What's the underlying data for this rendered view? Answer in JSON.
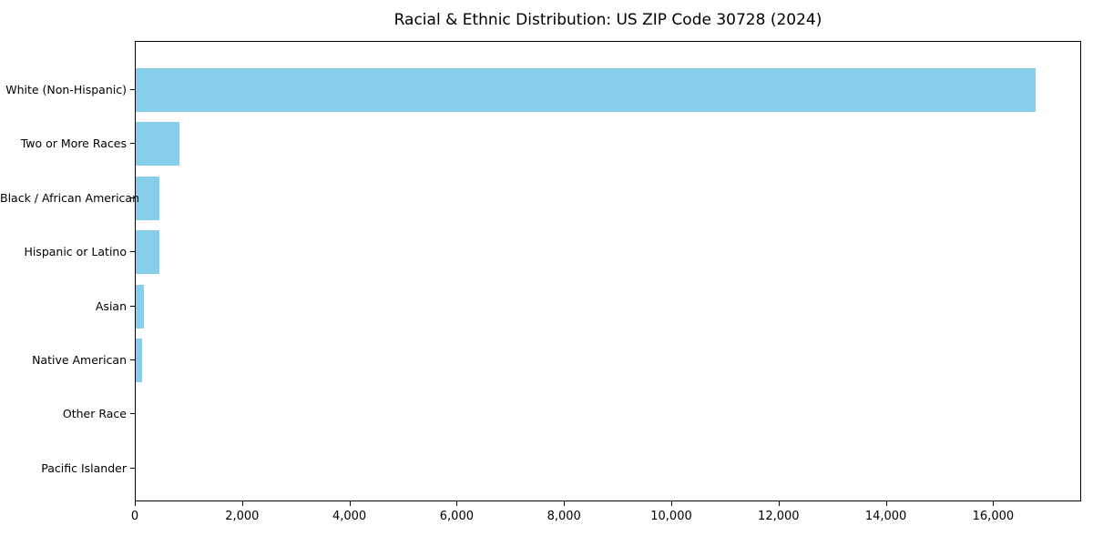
{
  "chart_data": {
    "type": "bar",
    "orientation": "horizontal",
    "title": "Racial & Ethnic Distribution: US ZIP Code 30728 (2024)",
    "categories": [
      "White (Non-Hispanic)",
      "Two or More Races",
      "Black / African American",
      "Hispanic or Latino",
      "Asian",
      "Native American",
      "Other Race",
      "Pacific Islander"
    ],
    "values": [
      16800,
      820,
      450,
      435,
      150,
      115,
      0,
      0
    ],
    "xlabel": "",
    "ylabel": "",
    "xlim": [
      0,
      17640
    ],
    "xticks": [
      0,
      2000,
      4000,
      6000,
      8000,
      10000,
      12000,
      14000,
      16000
    ],
    "xtick_labels": [
      "0",
      "2,000",
      "4,000",
      "6,000",
      "8,000",
      "10,000",
      "12,000",
      "14,000",
      "16,000"
    ],
    "grid": false,
    "legend": null,
    "bar_color": "#87CEEB",
    "background_color": "#ffffff",
    "spine_color": "#000000",
    "text_color": "#000000"
  }
}
